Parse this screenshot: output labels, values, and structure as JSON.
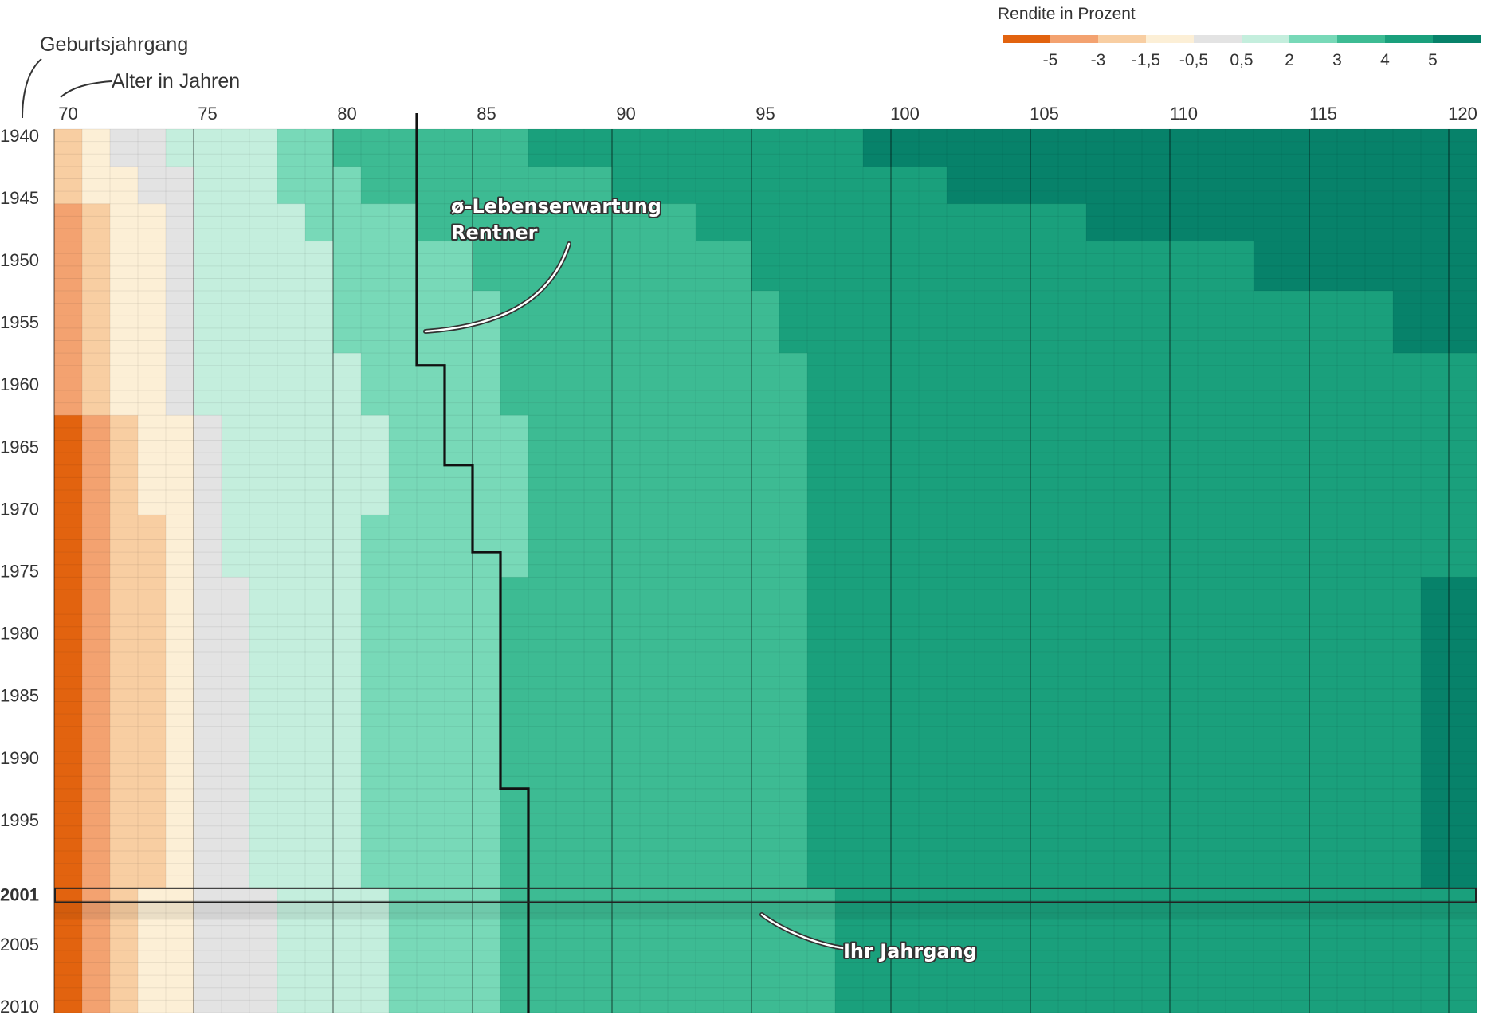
{
  "chart_data": {
    "type": "heatmap",
    "title": "Rendite in Prozent",
    "xlabel": "Alter in Jahren",
    "ylabel": "Geburtsjahrgang",
    "x_range": [
      70,
      120
    ],
    "y_range": [
      1940,
      2010
    ],
    "x_ticks": [
      "70",
      "75",
      "80",
      "85",
      "90",
      "95",
      "100",
      "105",
      "110",
      "115",
      "120"
    ],
    "y_ticks": [
      "1940",
      "1945",
      "1950",
      "1955",
      "1960",
      "1965",
      "1970",
      "1975",
      "1980",
      "1985",
      "1990",
      "1995",
      "2001",
      "2005",
      "2010"
    ],
    "legend": {
      "title": "Rendite in Prozent",
      "labels": [
        "-5",
        "-3",
        "-1,5",
        "-0,5",
        "0,5",
        "2",
        "3",
        "4",
        "5"
      ],
      "colors": [
        "#e2630f",
        "#f3a270",
        "#f8ceA2",
        "#fcefd6",
        "#e3e3e3",
        "#c4eedd",
        "#78d9b8",
        "#3dbb93",
        "#1aa07c",
        "#07826a"
      ]
    },
    "value_bins": [
      {
        "bin": 0,
        "range": "< -5"
      },
      {
        "bin": 1,
        "range": "-5 to -3"
      },
      {
        "bin": 2,
        "range": "-3 to -1,5"
      },
      {
        "bin": 3,
        "range": "-1,5 to -0,5"
      },
      {
        "bin": 4,
        "range": "-0,5 to 0,5"
      },
      {
        "bin": 5,
        "range": "0,5 to 2"
      },
      {
        "bin": 6,
        "range": "2 to 3"
      },
      {
        "bin": 7,
        "range": "3 to 4"
      },
      {
        "bin": 8,
        "range": "4 to 5"
      },
      {
        "bin": 9,
        "range": "> 5"
      }
    ],
    "cohort_boundaries": [
      {
        "from": 1940,
        "to": 1942,
        "bins_by_age": [
          [
            70,
            2
          ],
          [
            71,
            3
          ],
          [
            72,
            4
          ],
          [
            73,
            4
          ],
          [
            74,
            5
          ],
          [
            75,
            5
          ],
          [
            78,
            6
          ],
          [
            80,
            7
          ],
          [
            87,
            8
          ],
          [
            99,
            9
          ]
        ]
      },
      {
        "from": 1943,
        "to": 1945,
        "bins_by_age": [
          [
            70,
            2
          ],
          [
            71,
            3
          ],
          [
            73,
            4
          ],
          [
            75,
            5
          ],
          [
            78,
            6
          ],
          [
            81,
            7
          ],
          [
            90,
            8
          ],
          [
            102,
            9
          ]
        ]
      },
      {
        "from": 1946,
        "to": 1948,
        "bins_by_age": [
          [
            70,
            1
          ],
          [
            71,
            2
          ],
          [
            72,
            3
          ],
          [
            74,
            4
          ],
          [
            75,
            5
          ],
          [
            79,
            6
          ],
          [
            83,
            7
          ],
          [
            93,
            8
          ],
          [
            107,
            9
          ]
        ]
      },
      {
        "from": 1949,
        "to": 1952,
        "bins_by_age": [
          [
            70,
            1
          ],
          [
            71,
            2
          ],
          [
            72,
            3
          ],
          [
            74,
            4
          ],
          [
            75,
            5
          ],
          [
            80,
            6
          ],
          [
            85,
            7
          ],
          [
            95,
            8
          ],
          [
            113,
            9
          ]
        ]
      },
      {
        "from": 1953,
        "to": 1957,
        "bins_by_age": [
          [
            70,
            1
          ],
          [
            71,
            2
          ],
          [
            72,
            3
          ],
          [
            74,
            4
          ],
          [
            75,
            5
          ],
          [
            80,
            6
          ],
          [
            86,
            7
          ],
          [
            96,
            8
          ],
          [
            118,
            9
          ]
        ]
      },
      {
        "from": 1958,
        "to": 1962,
        "bins_by_age": [
          [
            70,
            1
          ],
          [
            71,
            2
          ],
          [
            72,
            3
          ],
          [
            74,
            4
          ],
          [
            75,
            5
          ],
          [
            81,
            6
          ],
          [
            86,
            7
          ],
          [
            97,
            8
          ]
        ]
      },
      {
        "from": 1963,
        "to": 1966,
        "bins_by_age": [
          [
            70,
            0
          ],
          [
            71,
            1
          ],
          [
            72,
            2
          ],
          [
            73,
            3
          ],
          [
            75,
            4
          ],
          [
            76,
            5
          ],
          [
            82,
            6
          ],
          [
            87,
            7
          ],
          [
            97,
            8
          ]
        ]
      },
      {
        "from": 1967,
        "to": 1970,
        "bins_by_age": [
          [
            70,
            0
          ],
          [
            71,
            1
          ],
          [
            72,
            2
          ],
          [
            73,
            3
          ],
          [
            75,
            4
          ],
          [
            76,
            5
          ],
          [
            82,
            6
          ],
          [
            87,
            7
          ],
          [
            97,
            8
          ]
        ]
      },
      {
        "from": 1971,
        "to": 1975,
        "bins_by_age": [
          [
            70,
            0
          ],
          [
            71,
            1
          ],
          [
            72,
            2
          ],
          [
            74,
            3
          ],
          [
            75,
            4
          ],
          [
            76,
            5
          ],
          [
            81,
            6
          ],
          [
            87,
            7
          ],
          [
            97,
            8
          ]
        ]
      },
      {
        "from": 1976,
        "to": 1986,
        "bins_by_age": [
          [
            70,
            0
          ],
          [
            71,
            1
          ],
          [
            72,
            2
          ],
          [
            74,
            3
          ],
          [
            75,
            4
          ],
          [
            77,
            5
          ],
          [
            81,
            6
          ],
          [
            86,
            7
          ],
          [
            97,
            8
          ],
          [
            119,
            9
          ]
        ]
      },
      {
        "from": 1987,
        "to": 2000,
        "bins_by_age": [
          [
            70,
            0
          ],
          [
            71,
            1
          ],
          [
            72,
            2
          ],
          [
            74,
            3
          ],
          [
            75,
            4
          ],
          [
            77,
            5
          ],
          [
            81,
            6
          ],
          [
            86,
            7
          ],
          [
            97,
            8
          ],
          [
            119,
            9
          ]
        ]
      },
      {
        "from": 2001,
        "to": 2010,
        "bins_by_age": [
          [
            70,
            0
          ],
          [
            71,
            1
          ],
          [
            72,
            2
          ],
          [
            73,
            3
          ],
          [
            75,
            4
          ],
          [
            78,
            5
          ],
          [
            82,
            6
          ],
          [
            86,
            7
          ],
          [
            98,
            8
          ]
        ]
      }
    ],
    "life_expectancy_steps": [
      {
        "from": 1940,
        "to": 1958,
        "age": 83
      },
      {
        "from": 1959,
        "to": 1966,
        "age": 84
      },
      {
        "from": 1967,
        "to": 1973,
        "age": 85
      },
      {
        "from": 1974,
        "to": 1992,
        "age": 86
      },
      {
        "from": 1993,
        "to": 2010,
        "age": 87
      }
    ],
    "highlight_year": 2001
  },
  "labels": {
    "ylabel": "Geburtsjahrgang",
    "xlabel": "Alter in Jahren",
    "legend_title": "Rendite in Prozent",
    "annotation_life_1": "ø-Lebenserwartung",
    "annotation_life_2": "Rentner",
    "annotation_cohort": "Ihr Jahrgang"
  }
}
